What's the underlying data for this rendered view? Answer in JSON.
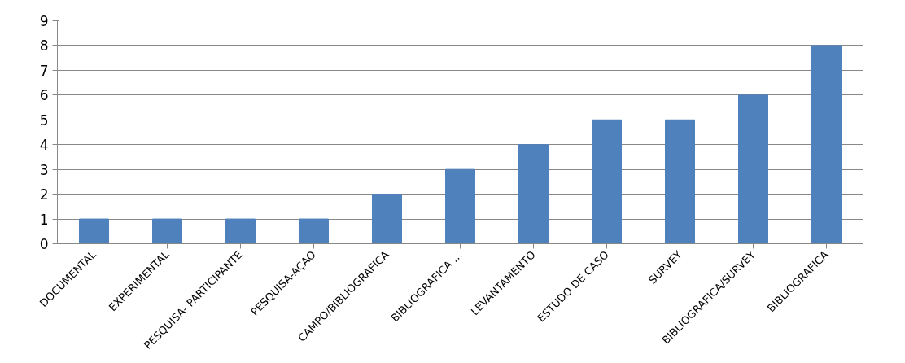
{
  "chart_data": {
    "type": "bar",
    "categories": [
      "DOCUMENTAL",
      "EXPERIMENTAL",
      "PESQUISA- PARTICIPANTE",
      "PESQUISA-AÇAO",
      "CAMPO/BIBLIOGRAFICA",
      "BIBLIOGRAFICA …",
      "LEVANTAMENTO",
      "ESTUDO DE CASO",
      "SURVEY",
      "BIBLIOGRAFICA/SURVEY",
      "BIBLIOGRAFICA"
    ],
    "values": [
      1,
      1,
      1,
      1,
      2,
      3,
      4,
      5,
      5,
      6,
      8
    ],
    "color": "#4f81bd",
    "ylim": [
      0,
      9
    ],
    "yticks": [
      0,
      1,
      2,
      3,
      4,
      5,
      6,
      7,
      8,
      9
    ],
    "grid": "y"
  }
}
